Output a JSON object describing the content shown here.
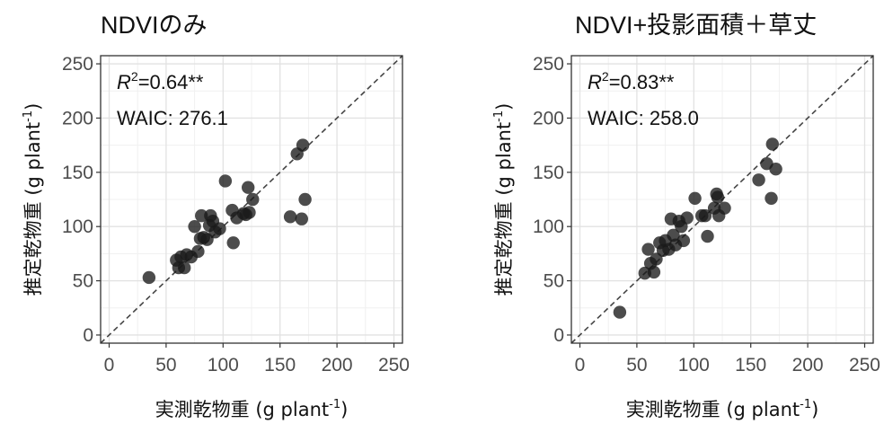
{
  "chart_data": [
    {
      "type": "scatter",
      "title": "NDVIのみ",
      "xlabel_main": "実測乾物重 (g plant",
      "xlabel_sup": "-1",
      "xlabel_tail": ")",
      "ylabel_main": "推定乾物重 (g plant",
      "ylabel_sup": "-1",
      "ylabel_tail": ")",
      "xlim": [
        0,
        250
      ],
      "ylim": [
        0,
        250
      ],
      "xticks": [
        0,
        50,
        100,
        150,
        200,
        250
      ],
      "yticks": [
        0,
        50,
        100,
        150,
        200,
        250
      ],
      "grid": true,
      "reference_line": "y = x (dashed)",
      "stats": {
        "r2_label": "R",
        "r2_sup": "2",
        "r2_value": "=0.64**",
        "waic": "WAIC: 276.1"
      },
      "points": [
        {
          "x": 35,
          "y": 53
        },
        {
          "x": 59,
          "y": 69
        },
        {
          "x": 61,
          "y": 62
        },
        {
          "x": 63,
          "y": 72
        },
        {
          "x": 66,
          "y": 62
        },
        {
          "x": 68,
          "y": 74
        },
        {
          "x": 72,
          "y": 72
        },
        {
          "x": 75,
          "y": 100
        },
        {
          "x": 78,
          "y": 77
        },
        {
          "x": 80,
          "y": 89
        },
        {
          "x": 81,
          "y": 110
        },
        {
          "x": 83,
          "y": 90
        },
        {
          "x": 86,
          "y": 88
        },
        {
          "x": 88,
          "y": 101
        },
        {
          "x": 89,
          "y": 110
        },
        {
          "x": 91,
          "y": 105
        },
        {
          "x": 93,
          "y": 95
        },
        {
          "x": 97,
          "y": 98
        },
        {
          "x": 102,
          "y": 142
        },
        {
          "x": 109,
          "y": 85
        },
        {
          "x": 108,
          "y": 115
        },
        {
          "x": 112,
          "y": 108
        },
        {
          "x": 118,
          "y": 112
        },
        {
          "x": 120,
          "y": 111
        },
        {
          "x": 122,
          "y": 136
        },
        {
          "x": 123,
          "y": 113
        },
        {
          "x": 126,
          "y": 125
        },
        {
          "x": 159,
          "y": 109
        },
        {
          "x": 165,
          "y": 167
        },
        {
          "x": 169,
          "y": 107
        },
        {
          "x": 170,
          "y": 175
        },
        {
          "x": 172,
          "y": 125
        }
      ]
    },
    {
      "type": "scatter",
      "title": "NDVI+投影面積＋草丈",
      "xlabel_main": "実測乾物重 (g plant",
      "xlabel_sup": "-1",
      "xlabel_tail": ")",
      "ylabel_main": "推定乾物重 (g plant",
      "ylabel_sup": "-1",
      "ylabel_tail": ")",
      "xlim": [
        0,
        250
      ],
      "ylim": [
        0,
        250
      ],
      "xticks": [
        0,
        50,
        100,
        150,
        200,
        250
      ],
      "yticks": [
        0,
        50,
        100,
        150,
        200,
        250
      ],
      "grid": true,
      "reference_line": "y = x (dashed)",
      "stats": {
        "r2_label": "R",
        "r2_sup": "2",
        "r2_value": "=0.83**",
        "waic": "WAIC: 258.0"
      },
      "points": [
        {
          "x": 35,
          "y": 21
        },
        {
          "x": 57,
          "y": 57
        },
        {
          "x": 60,
          "y": 79
        },
        {
          "x": 62,
          "y": 66
        },
        {
          "x": 65,
          "y": 58
        },
        {
          "x": 67,
          "y": 70
        },
        {
          "x": 70,
          "y": 85
        },
        {
          "x": 73,
          "y": 78
        },
        {
          "x": 75,
          "y": 87
        },
        {
          "x": 78,
          "y": 79
        },
        {
          "x": 80,
          "y": 107
        },
        {
          "x": 82,
          "y": 92
        },
        {
          "x": 84,
          "y": 83
        },
        {
          "x": 87,
          "y": 105
        },
        {
          "x": 89,
          "y": 100
        },
        {
          "x": 91,
          "y": 87
        },
        {
          "x": 94,
          "y": 108
        },
        {
          "x": 101,
          "y": 126
        },
        {
          "x": 107,
          "y": 110
        },
        {
          "x": 110,
          "y": 110
        },
        {
          "x": 112,
          "y": 91
        },
        {
          "x": 118,
          "y": 117
        },
        {
          "x": 120,
          "y": 130
        },
        {
          "x": 121,
          "y": 127
        },
        {
          "x": 122,
          "y": 110
        },
        {
          "x": 127,
          "y": 117
        },
        {
          "x": 157,
          "y": 143
        },
        {
          "x": 164,
          "y": 158
        },
        {
          "x": 168,
          "y": 126
        },
        {
          "x": 169,
          "y": 176
        },
        {
          "x": 172,
          "y": 153
        }
      ]
    }
  ]
}
